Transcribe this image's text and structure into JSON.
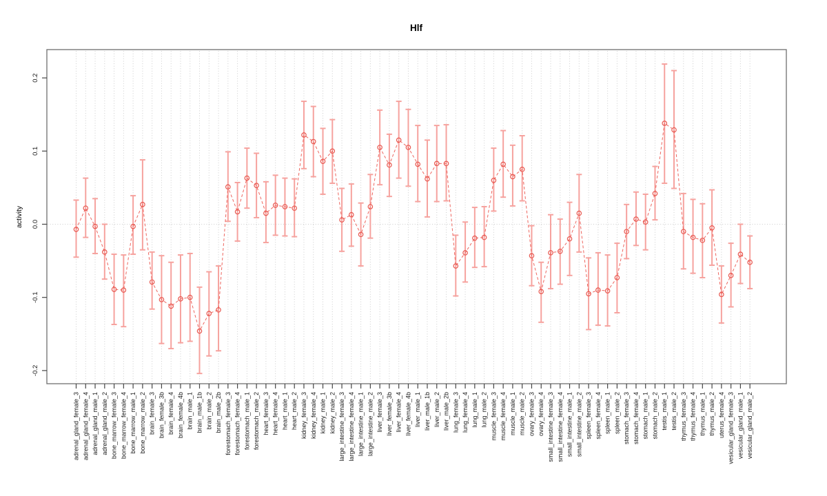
{
  "title": "Hlf",
  "axes": {
    "y_label": "activity",
    "y_tick_labels": [
      "0.2",
      "0.1",
      "0.0",
      "-0.1",
      "-0.2"
    ],
    "y_tick_values": [
      0.2,
      0.1,
      0.0,
      -0.1,
      -0.2
    ]
  },
  "colors": {
    "point_red": "#e8574f",
    "errorbar_pink": "#f6a29e",
    "line_red": "#ed655e",
    "grid_gray": "#cccccc",
    "box_gray": "#6e6e6e",
    "text_black": "#1a1a1a"
  },
  "chart_data": {
    "type": "scatter",
    "subtype": "points-with-error-bars-and-dashed-connecting-line",
    "title": "Hlf",
    "xlabel": "",
    "ylabel": "activity",
    "ylim": [
      -0.225,
      0.235
    ],
    "grid": "dotted vertical gridline per category; dotted horizontal line at 0",
    "legend": "none",
    "categories": [
      "adrenal_gland_female_3",
      "adrenal_gland_female_4",
      "adrenal_gland_male_1",
      "adrenal_gland_male_2",
      "bone_marrow_female_3",
      "bone_marrow_female_4",
      "bone_marrow_male_1",
      "bone_marrow_male_2",
      "brain_female_3",
      "brain_female_3b",
      "brain_female_4",
      "brain_female_4b",
      "brain_male_1",
      "brain_male_1b",
      "brain_male_2",
      "brain_male_2b",
      "forestomach_female_3",
      "forestomach_female_4",
      "forestomach_male_1",
      "forestomach_male_2",
      "heart_female_3",
      "heart_female_4",
      "heart_male_1",
      "heart_male_2",
      "kidney_female_3",
      "kidney_female_4",
      "kidney_male_1",
      "kidney_male_2",
      "large_intestine_female_3",
      "large_intestine_female_4",
      "large_intestine_male_1",
      "large_intestine_male_2",
      "liver_female_3",
      "liver_female_3b",
      "liver_female_4",
      "liver_female_4b",
      "liver_male_1",
      "liver_male_1b",
      "liver_male_2",
      "liver_male_2b",
      "lung_female_3",
      "lung_female_4",
      "lung_male_1",
      "lung_male_2",
      "muscle_female_3",
      "muscle_female_4",
      "muscle_male_1",
      "muscle_male_2",
      "ovary_female_3",
      "ovary_female_4",
      "small_intestine_female_3",
      "small_intestine_female_4",
      "small_intestine_male_1",
      "small_intestine_male_2",
      "spleen_female_3",
      "spleen_female_4",
      "spleen_male_1",
      "spleen_male_2",
      "stomach_female_3",
      "stomach_female_4",
      "stomach_male_1",
      "stomach_male_2",
      "testis_male_1",
      "testis_male_2",
      "thymus_female_3",
      "thymus_female_4",
      "thymus_male_1",
      "thymus_male_2",
      "uterus_female_4",
      "vesicular_gland_female_3",
      "vesicular_gland_male_1",
      "vesicular_gland_male_2"
    ],
    "series": [
      {
        "name": "activity",
        "values": [
          -0.007,
          0.022,
          -0.003,
          -0.038,
          -0.089,
          -0.09,
          -0.003,
          0.027,
          -0.079,
          -0.103,
          -0.112,
          -0.102,
          -0.1,
          -0.146,
          -0.122,
          -0.117,
          0.051,
          0.017,
          0.063,
          0.053,
          0.015,
          0.026,
          0.024,
          0.022,
          0.122,
          0.113,
          0.086,
          0.1,
          0.006,
          0.013,
          -0.014,
          0.024,
          0.105,
          0.081,
          0.115,
          0.105,
          0.082,
          0.062,
          0.083,
          0.083,
          -0.057,
          -0.039,
          -0.019,
          -0.018,
          0.06,
          0.082,
          0.065,
          0.075,
          -0.043,
          -0.092,
          -0.039,
          -0.037,
          -0.02,
          0.015,
          -0.095,
          -0.09,
          -0.091,
          -0.073,
          -0.01,
          0.007,
          0.003,
          0.042,
          0.138,
          0.129,
          -0.01,
          -0.018,
          -0.022,
          -0.005,
          -0.096,
          -0.07,
          -0.041,
          -0.052
        ],
        "ci_low": [
          -0.045,
          -0.018,
          -0.04,
          -0.075,
          -0.137,
          -0.14,
          -0.041,
          -0.035,
          -0.116,
          -0.163,
          -0.17,
          -0.162,
          -0.16,
          -0.204,
          -0.18,
          -0.173,
          0.004,
          -0.023,
          0.022,
          0.009,
          -0.025,
          -0.015,
          -0.016,
          -0.017,
          0.076,
          0.065,
          0.041,
          0.056,
          -0.037,
          -0.03,
          -0.057,
          -0.019,
          0.054,
          0.038,
          0.063,
          0.052,
          0.031,
          0.01,
          0.031,
          0.032,
          -0.098,
          -0.079,
          -0.059,
          -0.058,
          0.018,
          0.037,
          0.025,
          0.032,
          -0.084,
          -0.134,
          -0.088,
          -0.082,
          -0.07,
          -0.038,
          -0.144,
          -0.138,
          -0.139,
          -0.121,
          -0.047,
          -0.029,
          -0.035,
          0.006,
          0.056,
          0.049,
          -0.061,
          -0.067,
          -0.073,
          -0.056,
          -0.135,
          -0.113,
          -0.081,
          -0.088
        ],
        "ci_high": [
          0.033,
          0.063,
          0.035,
          0.0,
          -0.041,
          -0.042,
          0.039,
          0.088,
          -0.038,
          -0.043,
          -0.052,
          -0.042,
          -0.04,
          -0.086,
          -0.065,
          -0.057,
          0.099,
          0.057,
          0.104,
          0.097,
          0.058,
          0.067,
          0.063,
          0.062,
          0.168,
          0.161,
          0.131,
          0.143,
          0.049,
          0.055,
          0.029,
          0.068,
          0.156,
          0.123,
          0.168,
          0.157,
          0.135,
          0.115,
          0.135,
          0.136,
          -0.015,
          0.003,
          0.023,
          0.024,
          0.104,
          0.128,
          0.108,
          0.121,
          -0.002,
          -0.052,
          0.013,
          0.007,
          0.03,
          0.068,
          -0.046,
          -0.039,
          -0.042,
          -0.026,
          0.027,
          0.044,
          0.041,
          0.079,
          0.219,
          0.21,
          0.042,
          0.034,
          0.028,
          0.047,
          -0.057,
          -0.026,
          0.0,
          -0.016
        ]
      }
    ]
  }
}
